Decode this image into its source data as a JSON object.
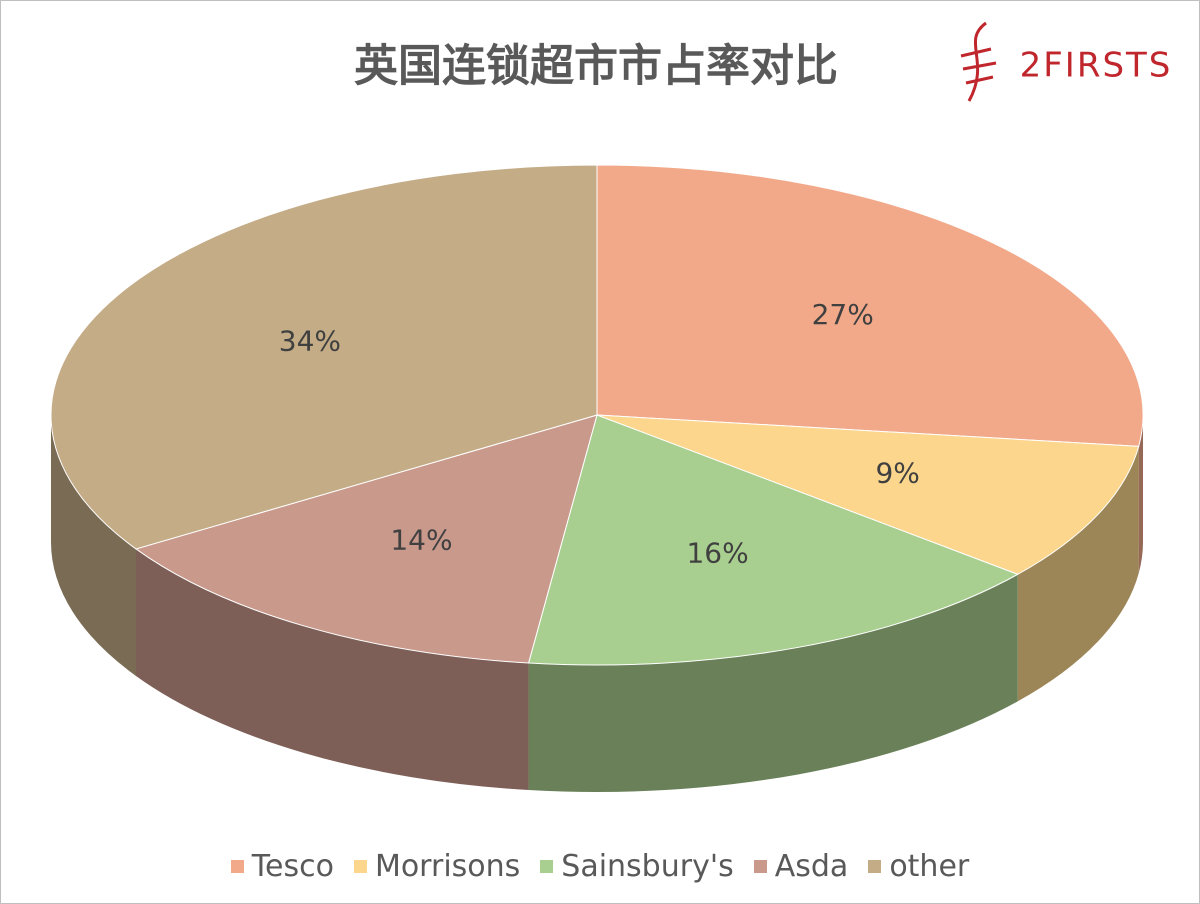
{
  "logo": "2FIRSTS",
  "chart_data": {
    "type": "pie3d",
    "title": "英国连锁超市市占率对比",
    "categories": [
      "Tesco",
      "Morrisons",
      "Sainsbury's",
      "Asda",
      "other"
    ],
    "values": [
      27,
      9,
      16,
      14,
      34
    ],
    "value_labels": [
      "27%",
      "9%",
      "16%",
      "14%",
      "34%"
    ],
    "colors": [
      "#f2a98a",
      "#fbd68c",
      "#a9cf90",
      "#c99a8c",
      "#c4ac87"
    ],
    "legend": "bottom"
  }
}
